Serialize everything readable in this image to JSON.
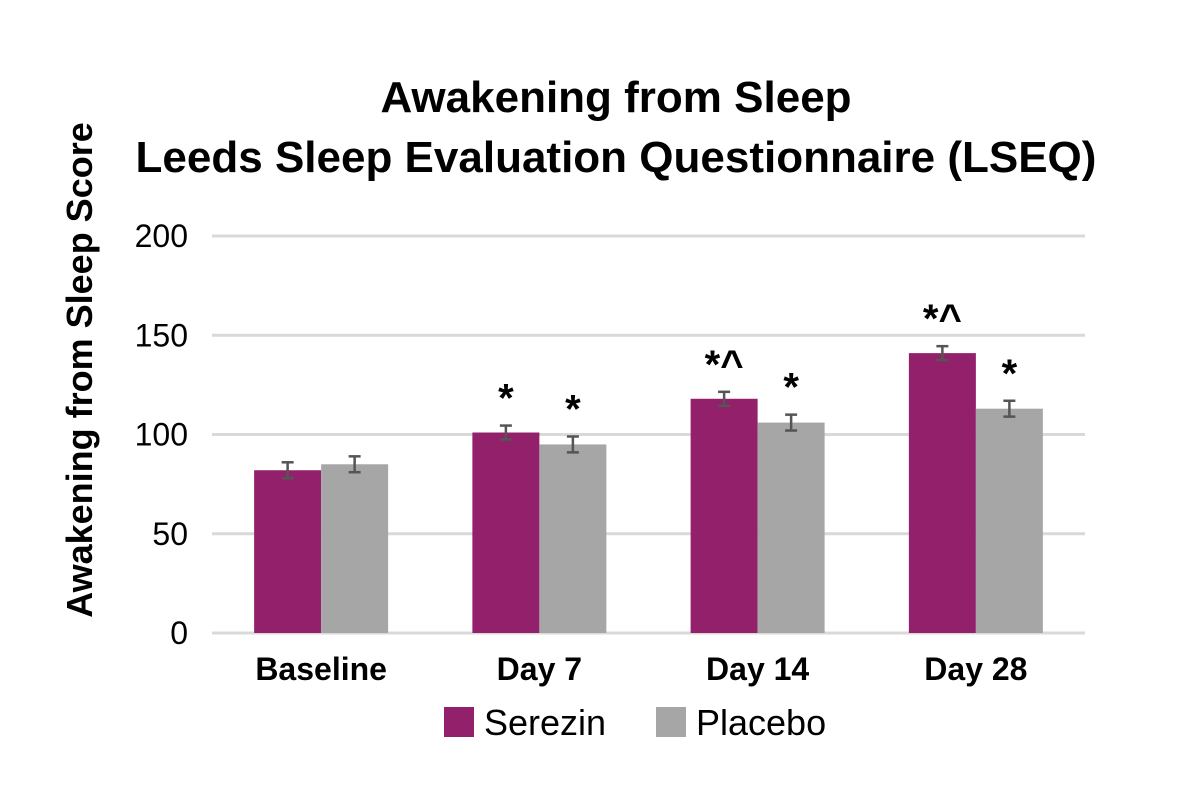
{
  "chart_data": {
    "type": "bar",
    "title": "Awakening from Sleep",
    "subtitle": "Leeds Sleep Evaluation Questionnaire (LSEQ)",
    "xlabel": "",
    "ylabel": "Awakening from Sleep Score",
    "ylim": [
      0,
      200
    ],
    "yticks": [
      "0",
      "50",
      "100",
      "150",
      "200"
    ],
    "grid": true,
    "legend_position": "bottom",
    "categories": [
      "Baseline",
      "Day 7",
      "Day 14",
      "Day 28"
    ],
    "series": [
      {
        "name": "Serezin",
        "color": "#93206a",
        "values": [
          82,
          101,
          118,
          141
        ],
        "errors": [
          4,
          3.5,
          3.5,
          3.5
        ],
        "annotations": [
          "",
          "*",
          "*^",
          "*^"
        ]
      },
      {
        "name": "Placebo",
        "color": "#a6a6a6",
        "values": [
          85,
          95,
          106,
          113
        ],
        "errors": [
          4,
          4,
          4,
          4
        ],
        "annotations": [
          "",
          "*",
          "*",
          "*"
        ]
      }
    ]
  }
}
